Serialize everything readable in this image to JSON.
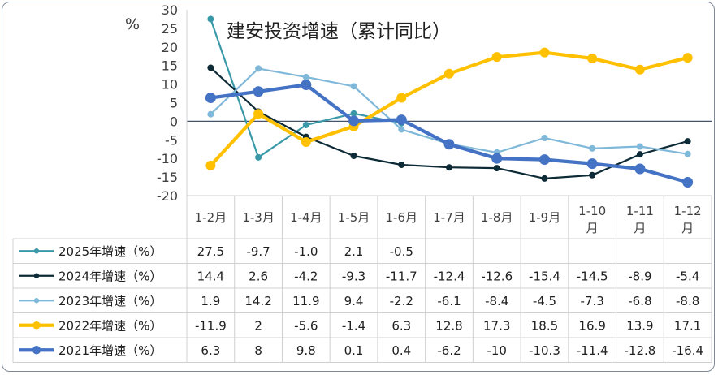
{
  "chart_data": {
    "type": "line",
    "title": "建安投资增速（累计同比）",
    "ylabel": "%",
    "ylim": [
      -20,
      30
    ],
    "yticks": [
      30,
      25,
      20,
      15,
      10,
      5,
      0,
      -5,
      -10,
      -15,
      -20
    ],
    "categories": [
      "1-2月",
      "1-3月",
      "1-4月",
      "1-5月",
      "1-6月",
      "1-7月",
      "1-8月",
      "1-9月",
      "1-10月",
      "1-11月",
      "1-12月"
    ],
    "series": [
      {
        "name": "2025年增速（%）",
        "color": "#3a99a8",
        "values": [
          27.5,
          -9.7,
          -1.0,
          2.1,
          -0.5,
          null,
          null,
          null,
          null,
          null,
          null
        ],
        "labels": [
          "27.5",
          "-9.7",
          "-1.0",
          "2.1",
          "-0.5",
          "",
          "",
          "",
          "",
          "",
          ""
        ]
      },
      {
        "name": "2024年增速（%）",
        "color": "#0d2b36",
        "values": [
          14.4,
          2.6,
          -4.2,
          -9.3,
          -11.7,
          -12.4,
          -12.6,
          -15.4,
          -14.5,
          -8.9,
          -5.4
        ],
        "labels": [
          "14.4",
          "2.6",
          "-4.2",
          "-9.3",
          "-11.7",
          "-12.4",
          "-12.6",
          "-15.4",
          "-14.5",
          "-8.9",
          "-5.4"
        ]
      },
      {
        "name": "2023年增速（%）",
        "color": "#7fb8d8",
        "values": [
          1.9,
          14.2,
          11.9,
          9.4,
          -2.2,
          -6.1,
          -8.4,
          -4.5,
          -7.3,
          -6.8,
          -8.8
        ],
        "labels": [
          "1.9",
          "14.2",
          "11.9",
          "9.4",
          "-2.2",
          "-6.1",
          "-8.4",
          "-4.5",
          "-7.3",
          "-6.8",
          "-8.8"
        ]
      },
      {
        "name": "2022年增速（%）",
        "color": "#ffc000",
        "values": [
          -11.9,
          2,
          -5.6,
          -1.4,
          6.3,
          12.8,
          17.3,
          18.5,
          16.9,
          13.9,
          17.1
        ],
        "labels": [
          "-11.9",
          "2",
          "-5.6",
          "-1.4",
          "6.3",
          "12.8",
          "17.3",
          "18.5",
          "16.9",
          "13.9",
          "17.1"
        ]
      },
      {
        "name": "2021年增速（%）",
        "color": "#4472c4",
        "values": [
          6.3,
          8,
          9.8,
          0.1,
          0.4,
          -6.2,
          -10,
          -10.3,
          -11.4,
          -12.8,
          -16.4
        ],
        "labels": [
          "6.3",
          "8",
          "9.8",
          "0.1",
          "0.4",
          "-6.2",
          "-10",
          "-10.3",
          "-11.4",
          "-12.8",
          "-16.4"
        ]
      }
    ]
  }
}
